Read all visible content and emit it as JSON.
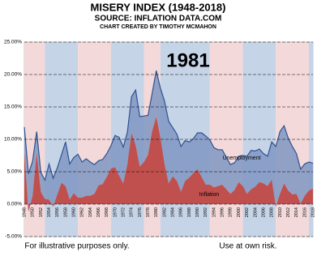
{
  "chart_data": {
    "type": "stacked_area",
    "title": "MISERY INDEX (1948-2018)",
    "subtitle": "SOURCE: INFLATION DATA.COM",
    "credit": "CHART CREATED BY TIMOTHY MCMAHON",
    "annotation": "1981",
    "footnotes": [
      "For illustrative purposes only.",
      "Use at own risk."
    ],
    "x": [
      1948,
      1949,
      1950,
      1951,
      1952,
      1953,
      1954,
      1955,
      1956,
      1957,
      1958,
      1959,
      1960,
      1961,
      1962,
      1963,
      1964,
      1965,
      1966,
      1967,
      1968,
      1969,
      1970,
      1971,
      1972,
      1973,
      1974,
      1975,
      1976,
      1977,
      1978,
      1979,
      1980,
      1981,
      1982,
      1983,
      1984,
      1985,
      1986,
      1987,
      1988,
      1989,
      1990,
      1991,
      1992,
      1993,
      1994,
      1995,
      1996,
      1997,
      1998,
      1999,
      2000,
      2001,
      2002,
      2003,
      2004,
      2005,
      2006,
      2007,
      2008,
      2009,
      2010,
      2011,
      2012,
      2013,
      2014,
      2015,
      2016,
      2017,
      2018
    ],
    "series": [
      {
        "name": "Inflation",
        "color": "#c0504d",
        "values": [
          8.1,
          -1.2,
          1.3,
          7.9,
          1.9,
          0.8,
          0.7,
          -0.4,
          1.5,
          3.3,
          2.8,
          0.7,
          1.7,
          1.0,
          1.0,
          1.3,
          1.3,
          1.6,
          2.9,
          3.1,
          4.2,
          5.5,
          5.7,
          4.4,
          3.2,
          6.2,
          11.0,
          9.1,
          5.8,
          6.5,
          7.6,
          11.3,
          13.5,
          10.3,
          6.2,
          3.2,
          4.3,
          3.6,
          1.9,
          3.6,
          4.1,
          4.8,
          5.4,
          4.2,
          3.0,
          3.0,
          2.6,
          2.8,
          3.0,
          2.3,
          1.6,
          2.2,
          3.4,
          2.8,
          1.6,
          2.3,
          2.7,
          3.4,
          3.2,
          2.8,
          3.8,
          -0.4,
          1.6,
          3.2,
          2.1,
          1.5,
          1.6,
          0.1,
          1.3,
          2.1,
          2.4
        ]
      },
      {
        "name": "Unemployment",
        "color": "#7f97c2",
        "line_color": "#2f528f",
        "values": [
          3.8,
          5.9,
          5.3,
          3.3,
          3.0,
          2.9,
          5.5,
          4.4,
          4.1,
          4.3,
          6.8,
          5.5,
          5.5,
          6.7,
          5.5,
          5.7,
          5.2,
          4.5,
          3.8,
          3.8,
          3.6,
          3.5,
          4.9,
          5.9,
          5.6,
          4.9,
          5.6,
          8.5,
          7.7,
          7.1,
          6.1,
          5.8,
          7.1,
          7.6,
          9.7,
          9.6,
          7.5,
          7.2,
          7.0,
          6.2,
          5.5,
          5.3,
          5.6,
          6.8,
          7.5,
          6.9,
          6.1,
          5.6,
          5.4,
          4.9,
          4.5,
          4.2,
          4.0,
          4.7,
          5.8,
          6.0,
          5.5,
          5.1,
          4.6,
          4.6,
          5.8,
          9.3,
          9.6,
          8.9,
          8.1,
          7.4,
          6.2,
          5.3,
          4.9,
          4.4,
          3.9
        ]
      }
    ],
    "xlim": [
      1948,
      2018
    ],
    "xticks": [
      1948,
      1950,
      1952,
      1954,
      1956,
      1958,
      1960,
      1962,
      1964,
      1966,
      1968,
      1970,
      1972,
      1974,
      1976,
      1978,
      1980,
      1982,
      1984,
      1986,
      1988,
      1990,
      1992,
      1994,
      1996,
      1998,
      2000,
      2002,
      2004,
      2006,
      2008,
      2010,
      2012,
      2014,
      2016,
      2018
    ],
    "ylim": [
      -5,
      25
    ],
    "yticks": [
      {
        "value": -5,
        "label": "-5.00%"
      },
      {
        "value": 0,
        "label": "0.00%"
      },
      {
        "value": 5,
        "label": "5.00%"
      },
      {
        "value": 10,
        "label": "10.00%"
      },
      {
        "value": 15,
        "label": "15.00%"
      },
      {
        "value": 20,
        "label": "20.00%"
      },
      {
        "value": 25,
        "label": "25.00%"
      }
    ],
    "grid": true,
    "shading": [
      {
        "start": 1948,
        "end": 1953,
        "color": "#f4d9da"
      },
      {
        "start": 1953,
        "end": 1961,
        "color": "#c6d4e7"
      },
      {
        "start": 1961,
        "end": 1969,
        "color": "#f4d9da"
      },
      {
        "start": 1969,
        "end": 1977,
        "color": "#c6d4e7"
      },
      {
        "start": 1977,
        "end": 1981,
        "color": "#f4d9da"
      },
      {
        "start": 1981,
        "end": 1993,
        "color": "#c6d4e7"
      },
      {
        "start": 1993,
        "end": 2001,
        "color": "#f4d9da"
      },
      {
        "start": 2001,
        "end": 2009,
        "color": "#c6d4e7"
      },
      {
        "start": 2009,
        "end": 2017,
        "color": "#f4d9da"
      },
      {
        "start": 2017,
        "end": 2018,
        "color": "#c6d4e7"
      }
    ]
  }
}
